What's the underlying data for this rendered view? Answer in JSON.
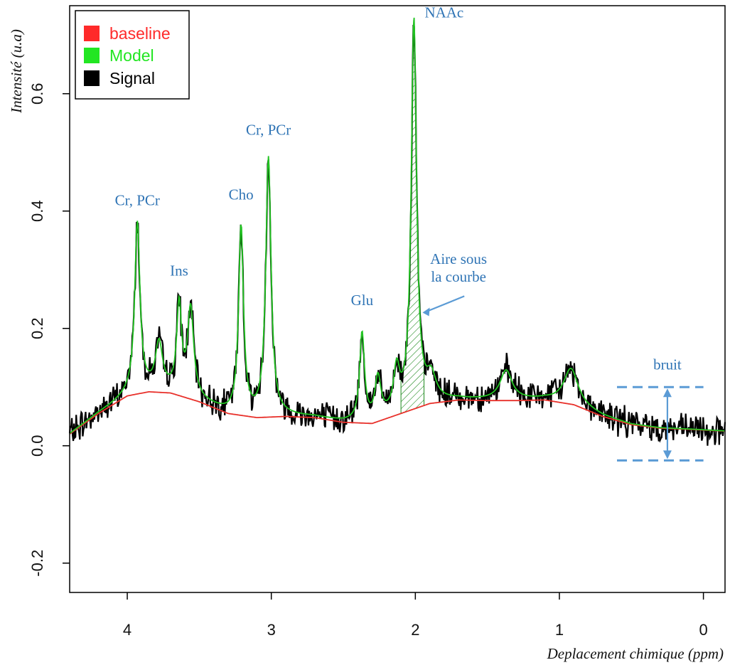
{
  "chart_data": {
    "type": "line",
    "xlabel": "Deplacement chimique (ppm)",
    "ylabel": "Intensité (u.a)",
    "xlim": [
      4.4,
      -0.15
    ],
    "ylim": [
      -0.25,
      0.75
    ],
    "x_axis_reversed": true,
    "grid": false,
    "legend_position": "top-left",
    "xticks": [
      4,
      3,
      2,
      1,
      0
    ],
    "xtick_labels": [
      "4",
      "3",
      "2",
      "1",
      "0"
    ],
    "yticks": [
      -0.2,
      0.0,
      0.2,
      0.4,
      0.6
    ],
    "ytick_labels": [
      "-0.2",
      "0.0",
      "0.2",
      "0.4",
      "0.6"
    ],
    "legend": [
      {
        "label": "baseline",
        "color": "#ff2a2a"
      },
      {
        "label": "Model",
        "color": "#22e622"
      },
      {
        "label": "Signal",
        "color": "#000000"
      }
    ],
    "series": [
      {
        "name": "baseline",
        "color": "#e8302a",
        "x": [
          4.4,
          4.2,
          4.0,
          3.85,
          3.7,
          3.5,
          3.3,
          3.1,
          2.9,
          2.7,
          2.5,
          2.3,
          2.1,
          1.9,
          1.7,
          1.5,
          1.3,
          1.1,
          0.9,
          0.7,
          0.5,
          0.3,
          0.1,
          -0.15
        ],
        "values": [
          0.02,
          0.055,
          0.085,
          0.092,
          0.09,
          0.075,
          0.055,
          0.048,
          0.05,
          0.048,
          0.04,
          0.038,
          0.055,
          0.072,
          0.078,
          0.077,
          0.077,
          0.078,
          0.07,
          0.05,
          0.036,
          0.03,
          0.028,
          0.025
        ]
      },
      {
        "name": "Model",
        "color": "#22c422",
        "peaks": [
          {
            "center": 3.93,
            "height": 0.29,
            "width": 0.022
          },
          {
            "center": 3.78,
            "height": 0.08,
            "width": 0.03
          },
          {
            "center": 3.64,
            "height": 0.15,
            "width": 0.02
          },
          {
            "center": 3.56,
            "height": 0.15,
            "width": 0.025
          },
          {
            "center": 3.21,
            "height": 0.32,
            "width": 0.02
          },
          {
            "center": 3.02,
            "height": 0.44,
            "width": 0.022
          },
          {
            "center": 2.37,
            "height": 0.15,
            "width": 0.02
          },
          {
            "center": 2.26,
            "height": 0.07,
            "width": 0.025
          },
          {
            "center": 2.13,
            "height": 0.07,
            "width": 0.025
          },
          {
            "center": 2.01,
            "height": 0.66,
            "width": 0.022
          },
          {
            "center": 1.89,
            "height": 0.04,
            "width": 0.04
          },
          {
            "center": 1.37,
            "height": 0.05,
            "width": 0.05
          },
          {
            "center": 0.92,
            "height": 0.06,
            "width": 0.06
          }
        ]
      },
      {
        "name": "Signal",
        "color": "#000000",
        "noise_amplitude": 0.02
      }
    ],
    "annotations": [
      {
        "text": "Cr, PCr",
        "x": 3.93,
        "y": 0.41
      },
      {
        "text": "Ins",
        "x": 3.64,
        "y": 0.29
      },
      {
        "text": "Cho",
        "x": 3.21,
        "y": 0.42
      },
      {
        "text": "Cr, PCr",
        "x": 3.02,
        "y": 0.53
      },
      {
        "text": "NAAc",
        "x": 1.8,
        "y": 0.73
      },
      {
        "text": "Glu",
        "x": 2.37,
        "y": 0.24
      },
      {
        "text": "Aire sous",
        "x": 1.7,
        "y": 0.31
      },
      {
        "text": "la courbe",
        "x": 1.7,
        "y": 0.28
      },
      {
        "text": "bruit",
        "x": 0.25,
        "y": 0.13
      }
    ],
    "shaded_area": {
      "label": "Aire sous la courbe",
      "x_from": 2.1,
      "x_to": 1.94
    },
    "noise_band": {
      "label": "bruit",
      "upper": 0.1,
      "lower": -0.025,
      "x_from": 0.6,
      "x_to": 0.0
    }
  }
}
